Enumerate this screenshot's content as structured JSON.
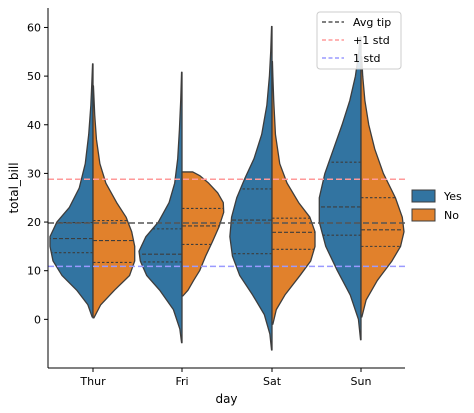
{
  "chart_data": {
    "type": "violin",
    "xlabel": "day",
    "ylabel": "total_bill",
    "ylim": [
      -10,
      64
    ],
    "yticks": [
      0,
      10,
      20,
      30,
      40,
      50,
      60
    ],
    "categories": [
      "Thur",
      "Fri",
      "Sat",
      "Sun"
    ],
    "grid": false,
    "split": true,
    "inner": "quart",
    "hue_legend": {
      "placement": "right",
      "entries": [
        {
          "name": "Yes",
          "color": "#3274a1"
        },
        {
          "name": "No",
          "color": "#e1812c"
        }
      ]
    },
    "reference_lines": [
      {
        "label": "Avg tip",
        "y": 19.8,
        "color": "#555555",
        "style": "dashed"
      },
      {
        "label": "+1 std",
        "y": 28.8,
        "color": "#ff9a9a",
        "style": "dashed"
      },
      {
        "label": "1 std",
        "y": 10.9,
        "color": "#9a9aff",
        "style": "dashed"
      }
    ],
    "reference_legend": {
      "placement": "top-right"
    },
    "violins": [
      {
        "day": "Thur",
        "yes": {
          "quartiles": [
            13.7,
            16.6,
            19.9
          ],
          "profile": [
            [
              0.5,
              0.02
            ],
            [
              3,
              0.12
            ],
            [
              6,
              0.38
            ],
            [
              9,
              0.72
            ],
            [
              12,
              0.93
            ],
            [
              15,
              1.0
            ],
            [
              17,
              1.0
            ],
            [
              20,
              0.84
            ],
            [
              23,
              0.55
            ],
            [
              27,
              0.32
            ],
            [
              32,
              0.18
            ],
            [
              38,
              0.1
            ],
            [
              44,
              0.05
            ],
            [
              48,
              0.03
            ],
            [
              52.5,
              0.01
            ]
          ]
        },
        "no": {
          "quartiles": [
            11.7,
            16.2,
            20.3
          ],
          "profile": [
            [
              0.3,
              0.02
            ],
            [
              3,
              0.18
            ],
            [
              6,
              0.5
            ],
            [
              9,
              0.85
            ],
            [
              12,
              0.97
            ],
            [
              15,
              0.97
            ],
            [
              18,
              0.9
            ],
            [
              21,
              0.77
            ],
            [
              24,
              0.55
            ],
            [
              28,
              0.3
            ],
            [
              32,
              0.16
            ],
            [
              37,
              0.08
            ],
            [
              42,
              0.04
            ],
            [
              46,
              0.02
            ],
            [
              48,
              0.01
            ]
          ]
        }
      },
      {
        "day": "Fri",
        "yes": {
          "quartiles": [
            11.8,
            13.4,
            18.6
          ],
          "profile": [
            [
              -4.8,
              0.01
            ],
            [
              -2,
              0.05
            ],
            [
              2,
              0.2
            ],
            [
              6,
              0.52
            ],
            [
              9,
              0.82
            ],
            [
              12,
              0.97
            ],
            [
              14,
              1.0
            ],
            [
              17,
              0.84
            ],
            [
              20,
              0.55
            ],
            [
              24,
              0.3
            ],
            [
              28,
              0.17
            ],
            [
              33,
              0.1
            ],
            [
              39,
              0.06
            ],
            [
              45,
              0.03
            ],
            [
              50.8,
              0.01
            ]
          ]
        },
        "no": {
          "quartiles": [
            15.4,
            19.2,
            22.8
          ],
          "profile": [
            [
              4.8,
              0.02
            ],
            [
              6,
              0.14
            ],
            [
              8,
              0.27
            ],
            [
              10,
              0.41
            ],
            [
              13,
              0.55
            ],
            [
              16,
              0.71
            ],
            [
              19,
              0.86
            ],
            [
              22,
              0.97
            ],
            [
              24,
              0.96
            ],
            [
              26,
              0.83
            ],
            [
              28,
              0.62
            ],
            [
              29.5,
              0.42
            ],
            [
              30.3,
              0.25
            ]
          ]
        }
      },
      {
        "day": "Sat",
        "yes": {
          "quartiles": [
            13.5,
            20.4,
            26.8
          ],
          "profile": [
            [
              -6.3,
              0.01
            ],
            [
              -3,
              0.05
            ],
            [
              1,
              0.18
            ],
            [
              5,
              0.45
            ],
            [
              9,
              0.75
            ],
            [
              13,
              0.92
            ],
            [
              17,
              0.98
            ],
            [
              21,
              0.94
            ],
            [
              25,
              0.82
            ],
            [
              29,
              0.63
            ],
            [
              33,
              0.42
            ],
            [
              38,
              0.24
            ],
            [
              44,
              0.12
            ],
            [
              50,
              0.06
            ],
            [
              55,
              0.03
            ],
            [
              60.2,
              0.01
            ]
          ]
        },
        "no": {
          "quartiles": [
            14.4,
            17.9,
            20.8
          ],
          "profile": [
            [
              -1,
              0.02
            ],
            [
              2,
              0.1
            ],
            [
              5,
              0.3
            ],
            [
              9,
              0.65
            ],
            [
              12,
              0.9
            ],
            [
              15,
              1.0
            ],
            [
              18,
              1.0
            ],
            [
              21,
              0.88
            ],
            [
              24,
              0.62
            ],
            [
              28,
              0.35
            ],
            [
              32,
              0.18
            ],
            [
              38,
              0.08
            ],
            [
              45,
              0.04
            ],
            [
              50,
              0.02
            ],
            [
              53,
              0.01
            ]
          ]
        }
      },
      {
        "day": "Sun",
        "yes": {
          "quartiles": [
            17.3,
            23.1,
            32.3
          ],
          "profile": [
            [
              -4.2,
              0.01
            ],
            [
              0,
              0.06
            ],
            [
              5,
              0.25
            ],
            [
              10,
              0.55
            ],
            [
              15,
              0.82
            ],
            [
              20,
              0.97
            ],
            [
              25,
              0.97
            ],
            [
              30,
              0.84
            ],
            [
              35,
              0.64
            ],
            [
              40,
              0.44
            ],
            [
              45,
              0.26
            ],
            [
              50,
              0.13
            ],
            [
              55,
              0.05
            ],
            [
              58,
              0.02
            ]
          ]
        },
        "no": {
          "quartiles": [
            15.0,
            18.4,
            25.0
          ],
          "profile": [
            [
              0.5,
              0.02
            ],
            [
              4,
              0.12
            ],
            [
              8,
              0.38
            ],
            [
              12,
              0.72
            ],
            [
              15,
              0.92
            ],
            [
              18,
              1.0
            ],
            [
              21,
              0.96
            ],
            [
              25,
              0.8
            ],
            [
              30,
              0.52
            ],
            [
              35,
              0.32
            ],
            [
              40,
              0.18
            ],
            [
              45,
              0.09
            ],
            [
              50,
              0.04
            ],
            [
              54,
              0.015
            ]
          ]
        }
      }
    ]
  }
}
